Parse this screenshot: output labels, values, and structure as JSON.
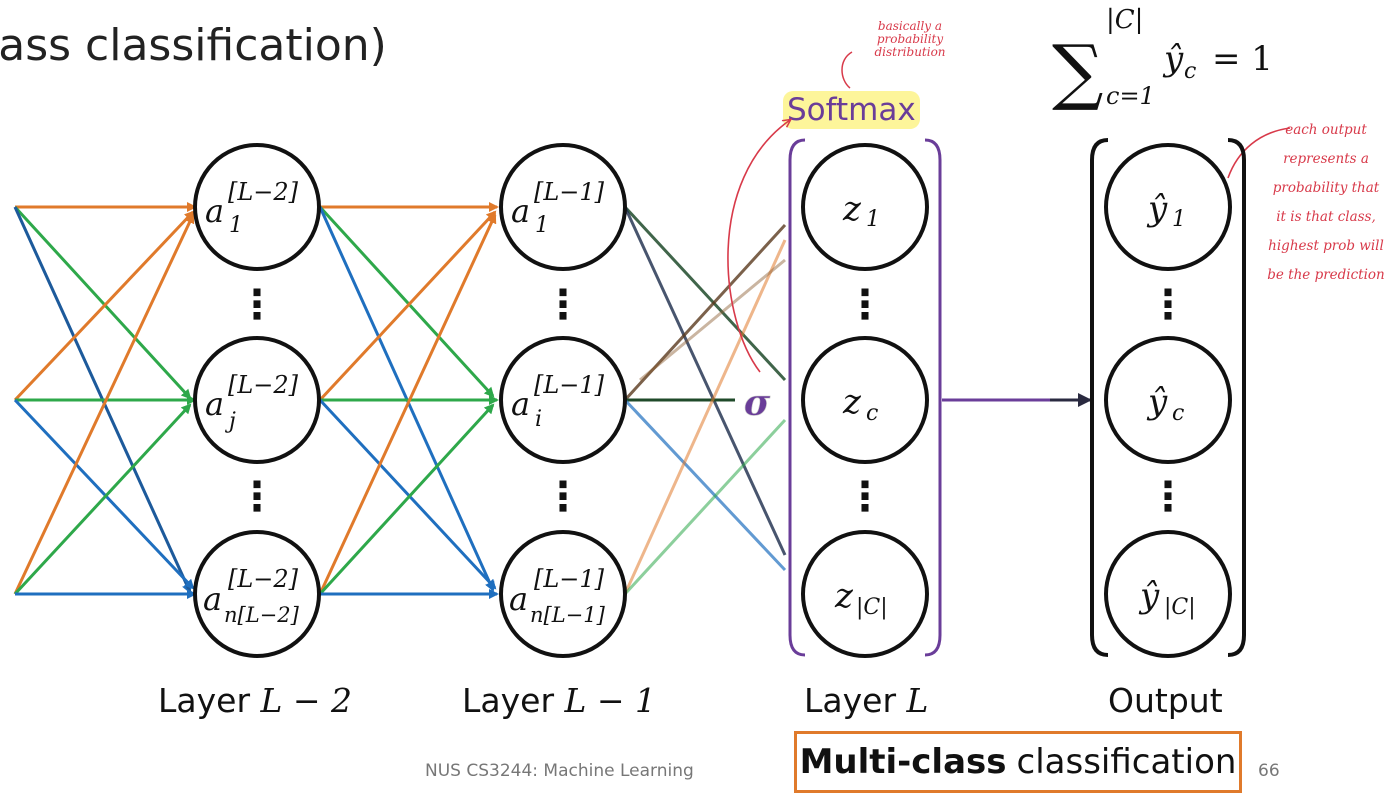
{
  "title": "lass classification)",
  "annotations": {
    "top_note": "basically a probability distribution",
    "right_note": "each output represents a probability that it is that class, highest prob will be the prediction"
  },
  "softmax_label": "Softmax",
  "sigma_symbol": "σ",
  "sum_formula": {
    "symbol": "∑",
    "upper": "|C|",
    "lower": "c=1",
    "term": "ŷ",
    "term_sub": "c",
    "rhs": "= 1"
  },
  "layers": [
    {
      "label": "Layer ",
      "math": "L − 2",
      "superscript": "[L−2]",
      "nodes": [
        {
          "base": "a",
          "sub": "1"
        },
        {
          "base": "a",
          "sub": "j"
        },
        {
          "base": "a",
          "sub": "n[L−2]"
        }
      ]
    },
    {
      "label": "Layer ",
      "math": "L − 1",
      "superscript": "[L−1]",
      "nodes": [
        {
          "base": "a",
          "sub": "1"
        },
        {
          "base": "a",
          "sub": "i"
        },
        {
          "base": "a",
          "sub": "n[L−1]"
        }
      ]
    },
    {
      "label": "Layer ",
      "math": "L",
      "superscript": "",
      "nodes": [
        {
          "base": "z",
          "sub": "1"
        },
        {
          "base": "z",
          "sub": "c"
        },
        {
          "base": "z",
          "sub": "|C|"
        }
      ]
    },
    {
      "label": "Output",
      "math": "",
      "superscript": "",
      "nodes": [
        {
          "base": "ŷ",
          "sub": "1"
        },
        {
          "base": "ŷ",
          "sub": "c"
        },
        {
          "base": "ŷ",
          "sub": "|C|"
        }
      ]
    }
  ],
  "vertical_ellipsis": "⋮",
  "footer": "NUS CS3244: Machine Learning",
  "page_number": "66",
  "classification_box": {
    "bold": "Multi-class",
    "rest": "classification"
  },
  "colors": {
    "orange": "#e07a2b",
    "green": "#2ea84a",
    "blue": "#1f6fbf",
    "brown": "#5a3a1e",
    "dark_green": "#1f4a2a",
    "navy": "#1a2a4a",
    "purple": "#6a3d99",
    "annotation_red": "#d83a4a",
    "highlight": "#fdf59a",
    "footer_gray": "#777777"
  }
}
